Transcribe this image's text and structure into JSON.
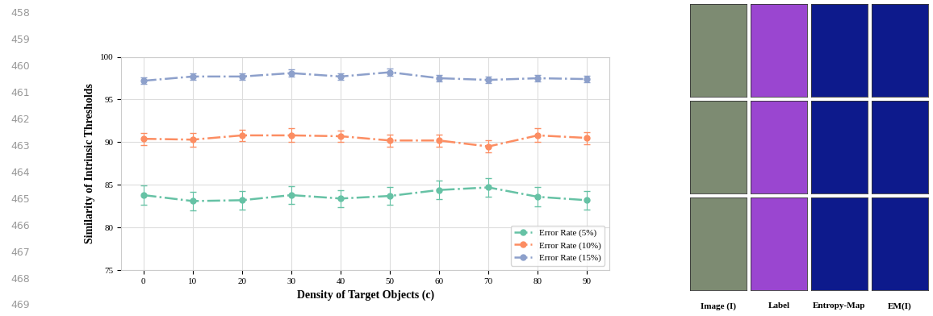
{
  "line_numbers": [
    "458",
    "459",
    "460",
    "461",
    "462",
    "463",
    "464",
    "465",
    "466",
    "467",
    "468",
    "469"
  ],
  "chart_data": {
    "type": "line",
    "x_label": "Density of Target Objects (c)",
    "y_label": "Similarity of Intrinsic Thresholds",
    "x": [
      0,
      10,
      20,
      30,
      40,
      50,
      60,
      70,
      80,
      90
    ],
    "xlim": [
      -4.5,
      94.5
    ],
    "xticks": [
      0,
      10,
      20,
      30,
      40,
      50,
      60,
      70,
      80,
      90
    ],
    "ylim": [
      75,
      100
    ],
    "yticks": [
      75,
      80,
      85,
      90,
      95,
      100
    ],
    "grid": true,
    "legend": "lower right",
    "marker": "o",
    "line_style": "dashdot",
    "series": [
      {
        "name": "Error Rate (5%)",
        "color": "#66c2a5",
        "values": [
          83.8,
          83.1,
          83.2,
          83.8,
          83.4,
          83.7,
          84.4,
          84.7,
          83.6,
          83.2
        ],
        "errors": [
          1.1,
          1.1,
          1.1,
          1.0,
          1.0,
          1.0,
          1.1,
          1.1,
          1.1,
          1.1
        ]
      },
      {
        "name": "Error Rate (10%)",
        "color": "#fc8d62",
        "values": [
          90.4,
          90.3,
          90.8,
          90.8,
          90.7,
          90.2,
          90.2,
          89.5,
          90.8,
          90.5
        ],
        "errors": [
          0.7,
          0.8,
          0.7,
          0.8,
          0.7,
          0.7,
          0.7,
          0.7,
          0.8,
          0.7
        ]
      },
      {
        "name": "Error Rate (15%)",
        "color": "#8da0cb",
        "values": [
          97.2,
          97.7,
          97.7,
          98.1,
          97.7,
          98.2,
          97.5,
          97.3,
          97.5,
          97.4
        ],
        "errors": [
          0.4,
          0.4,
          0.4,
          0.4,
          0.4,
          0.4,
          0.4,
          0.4,
          0.4,
          0.4
        ]
      }
    ]
  },
  "image_grid": {
    "rows": 3,
    "column_labels": [
      "Image (I)",
      "Label",
      "Entropy-Map",
      "EM(I)"
    ]
  }
}
